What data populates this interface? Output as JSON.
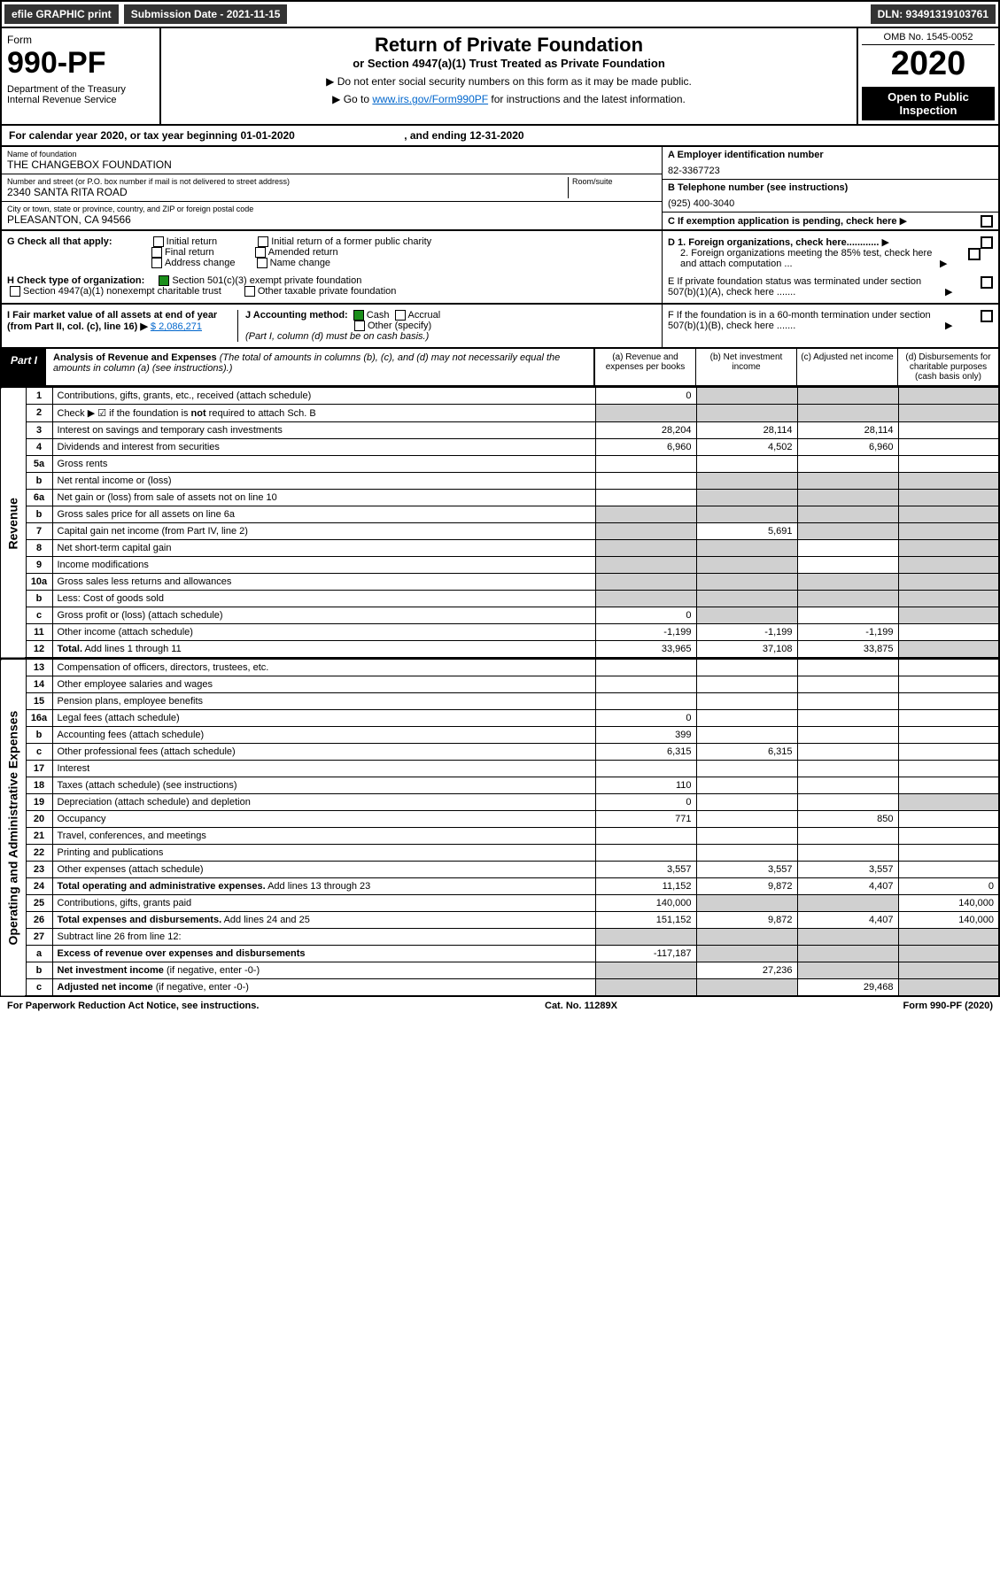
{
  "topbar": {
    "efile": "efile GRAPHIC print",
    "subdate_lbl": "Submission Date - ",
    "subdate": "2021-11-15",
    "dln": "DLN: 93491319103761"
  },
  "omb": "OMB No. 1545-0052",
  "form": {
    "word": "Form",
    "num": "990-PF",
    "dept": "Department of the Treasury",
    "irs": "Internal Revenue Service"
  },
  "title": "Return of Private Foundation",
  "subtitle": "or Section 4947(a)(1) Trust Treated as Private Foundation",
  "instr1": "▶ Do not enter social security numbers on this form as it may be made public.",
  "instr2": "▶ Go to ",
  "instr2_link": "www.irs.gov/Form990PF",
  "instr2_tail": " for instructions and the latest information.",
  "year": "2020",
  "open": "Open to Public Inspection",
  "cal": {
    "pre": "For calendar year 2020, or tax year beginning ",
    "begin": "01-01-2020",
    "mid": ", and ending ",
    "end": "12-31-2020"
  },
  "name": {
    "lbl": "Name of foundation",
    "val": "THE CHANGEBOX FOUNDATION"
  },
  "addr": {
    "lbl": "Number and street (or P.O. box number if mail is not delivered to street address)",
    "val": "2340 SANTA RITA ROAD",
    "room": "Room/suite"
  },
  "city": {
    "lbl": "City or town, state or province, country, and ZIP or foreign postal code",
    "val": "PLEASANTON, CA  94566"
  },
  "A": {
    "lbl": "A Employer identification number",
    "val": "82-3367723"
  },
  "B": {
    "lbl": "B Telephone number (see instructions)",
    "val": "(925) 400-3040"
  },
  "C": "C If exemption application is pending, check here",
  "D1": "D 1. Foreign organizations, check here............",
  "D2": "2. Foreign organizations meeting the 85% test, check here and attach computation ...",
  "E": "E  If private foundation status was terminated under section 507(b)(1)(A), check here .......",
  "F": "F  If the foundation is in a 60-month termination under section 507(b)(1)(B), check here .......",
  "G": {
    "lbl": "G Check all that apply:",
    "o1": "Initial return",
    "o2": "Final return",
    "o3": "Address change",
    "o4": "Initial return of a former public charity",
    "o5": "Amended return",
    "o6": "Name change"
  },
  "H": {
    "lbl": "H Check type of organization:",
    "o1": "Section 501(c)(3) exempt private foundation",
    "o2": "Section 4947(a)(1) nonexempt charitable trust",
    "o3": "Other taxable private foundation"
  },
  "I": {
    "lbl": "I Fair market value of all assets at end of year (from Part II, col. (c), line 16) ▶",
    "val": "$  2,086,271"
  },
  "J": {
    "lbl": "J Accounting method:",
    "cash": "Cash",
    "accr": "Accrual",
    "other": "Other (specify)",
    "note": "(Part I, column (d) must be on cash basis.)"
  },
  "part1": {
    "tag": "Part I",
    "title": "Analysis of Revenue and Expenses",
    "note": "(The total of amounts in columns (b), (c), and (d) may not necessarily equal the amounts in column (a) (see instructions).)"
  },
  "cols": {
    "a": "(a)  Revenue and expenses per books",
    "b": "(b)  Net investment income",
    "c": "(c)  Adjusted net income",
    "d": "(d)  Disbursements for charitable purposes (cash basis only)"
  },
  "side": {
    "rev": "Revenue",
    "exp": "Operating and Administrative Expenses"
  },
  "rows": [
    {
      "n": "1",
      "d": "Contributions, gifts, grants, etc., received (attach schedule)",
      "a": "0",
      "grayb": true,
      "grayc": true,
      "grayd": true
    },
    {
      "n": "2",
      "d": "Check ▶ ☑ if the foundation is <b>not</b> required to attach Sch. B",
      "graya": true,
      "grayb": true,
      "grayc": true,
      "grayd": true
    },
    {
      "n": "3",
      "d": "Interest on savings and temporary cash investments",
      "a": "28,204",
      "b": "28,114",
      "c": "28,114"
    },
    {
      "n": "4",
      "d": "Dividends and interest from securities",
      "a": "6,960",
      "b": "4,502",
      "c": "6,960"
    },
    {
      "n": "5a",
      "d": "Gross rents"
    },
    {
      "n": "b",
      "d": "Net rental income or (loss)",
      "grayb": true,
      "grayc": true,
      "grayd": true
    },
    {
      "n": "6a",
      "d": "Net gain or (loss) from sale of assets not on line 10",
      "grayb": true,
      "grayc": true,
      "grayd": true
    },
    {
      "n": "b",
      "d": "Gross sales price for all assets on line 6a",
      "graya": true,
      "grayb": true,
      "grayc": true,
      "grayd": true
    },
    {
      "n": "7",
      "d": "Capital gain net income (from Part IV, line 2)",
      "graya": true,
      "b": "5,691",
      "grayc": true,
      "grayd": true
    },
    {
      "n": "8",
      "d": "Net short-term capital gain",
      "graya": true,
      "grayb": true,
      "grayd": true
    },
    {
      "n": "9",
      "d": "Income modifications",
      "graya": true,
      "grayb": true,
      "grayd": true
    },
    {
      "n": "10a",
      "d": "Gross sales less returns and allowances",
      "graya": true,
      "grayb": true,
      "grayc": true,
      "grayd": true
    },
    {
      "n": "b",
      "d": "Less: Cost of goods sold",
      "graya": true,
      "grayb": true,
      "grayc": true,
      "grayd": true
    },
    {
      "n": "c",
      "d": "Gross profit or (loss) (attach schedule)",
      "a": "0",
      "grayb": true,
      "grayd": true
    },
    {
      "n": "11",
      "d": "Other income (attach schedule)",
      "a": "-1,199",
      "b": "-1,199",
      "c": "-1,199"
    },
    {
      "n": "12",
      "d": "<b>Total.</b> Add lines 1 through 11",
      "a": "33,965",
      "b": "37,108",
      "c": "33,875",
      "grayd": true,
      "bold": true
    }
  ],
  "rows2": [
    {
      "n": "13",
      "d": "Compensation of officers, directors, trustees, etc."
    },
    {
      "n": "14",
      "d": "Other employee salaries and wages"
    },
    {
      "n": "15",
      "d": "Pension plans, employee benefits"
    },
    {
      "n": "16a",
      "d": "Legal fees (attach schedule)",
      "a": "0"
    },
    {
      "n": "b",
      "d": "Accounting fees (attach schedule)",
      "a": "399"
    },
    {
      "n": "c",
      "d": "Other professional fees (attach schedule)",
      "a": "6,315",
      "b": "6,315"
    },
    {
      "n": "17",
      "d": "Interest"
    },
    {
      "n": "18",
      "d": "Taxes (attach schedule) (see instructions)",
      "a": "110"
    },
    {
      "n": "19",
      "d": "Depreciation (attach schedule) and depletion",
      "a": "0",
      "grayd": true
    },
    {
      "n": "20",
      "d": "Occupancy",
      "a": "771",
      "c": "850"
    },
    {
      "n": "21",
      "d": "Travel, conferences, and meetings"
    },
    {
      "n": "22",
      "d": "Printing and publications"
    },
    {
      "n": "23",
      "d": "Other expenses (attach schedule)",
      "a": "3,557",
      "b": "3,557",
      "c": "3,557"
    },
    {
      "n": "24",
      "d": "<b>Total operating and administrative expenses.</b> Add lines 13 through 23",
      "a": "11,152",
      "b": "9,872",
      "c": "4,407",
      "dv": "0",
      "bold": true
    },
    {
      "n": "25",
      "d": "Contributions, gifts, grants paid",
      "a": "140,000",
      "grayb": true,
      "grayc": true,
      "dv": "140,000"
    },
    {
      "n": "26",
      "d": "<b>Total expenses and disbursements.</b> Add lines 24 and 25",
      "a": "151,152",
      "b": "9,872",
      "c": "4,407",
      "dv": "140,000",
      "bold": true
    },
    {
      "n": "27",
      "d": "Subtract line 26 from line 12:",
      "graya": true,
      "grayb": true,
      "grayc": true,
      "grayd": true
    },
    {
      "n": "a",
      "d": "<b>Excess of revenue over expenses and disbursements</b>",
      "a": "-117,187",
      "grayb": true,
      "grayc": true,
      "grayd": true,
      "bold": true
    },
    {
      "n": "b",
      "d": "<b>Net investment income</b> (if negative, enter -0-)",
      "graya": true,
      "b": "27,236",
      "grayc": true,
      "grayd": true,
      "bold": true
    },
    {
      "n": "c",
      "d": "<b>Adjusted net income</b> (if negative, enter -0-)",
      "graya": true,
      "grayb": true,
      "c": "29,468",
      "grayd": true,
      "bold": true
    }
  ],
  "footer": {
    "l": "For Paperwork Reduction Act Notice, see instructions.",
    "m": "Cat. No. 11289X",
    "r": "Form 990-PF (2020)"
  }
}
